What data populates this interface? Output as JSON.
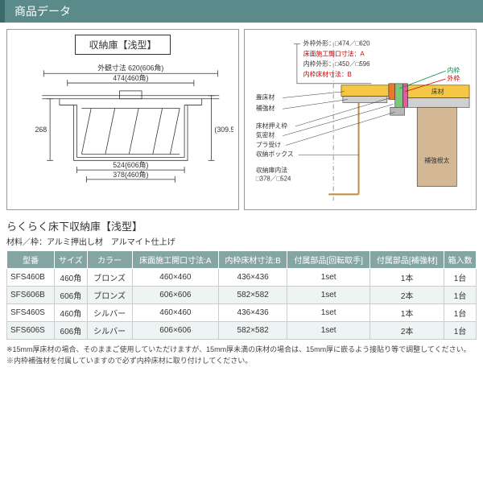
{
  "header": {
    "title": "商品データ"
  },
  "leftDiagram": {
    "title": "収納庫【浅型】",
    "dims": {
      "outerW": "外観寸法 620(606角)",
      "outerW2": "474(460角)",
      "h1": "268",
      "h2": "(309.5)",
      "innerW1": "524(606角)",
      "innerW2": "378(460角)"
    }
  },
  "rightDiagram": {
    "labels": {
      "l1": "外枠外形：□474／□620",
      "l2": "床面施工開口寸法：A",
      "l3": "内枠外形：□450／□596",
      "l4": "内枠床材寸法：B",
      "inner": "内枠",
      "outer": "外枠",
      "p1": "畳床材",
      "p2": "補強材",
      "p3": "床材押え枠",
      "p4": "気密材",
      "p5": "プラ受け",
      "p6": "収納ボックス",
      "p7": "収納庫内法",
      "p8": "□378／□524",
      "floor": "床材",
      "beam": "補強根太"
    },
    "colors": {
      "floor": "#f5c744",
      "beam": "#d4b896",
      "redLine": "#c00000",
      "greenLine": "#0a8a4a",
      "gray": "#b8b8b8"
    }
  },
  "product": {
    "title": "らくらく床下収納庫【浅型】",
    "sub": "材料／枠：アルミ押出し材　アルマイト仕上げ"
  },
  "table": {
    "headers": [
      "型番",
      "サイズ",
      "カラー",
      "床面施工開口寸法:A",
      "内枠床材寸法:B",
      "付属部品[回転取手]",
      "付属部品[補強材]",
      "箱入数"
    ],
    "rows": [
      [
        "SFS460B",
        "460角",
        "ブロンズ",
        "460×460",
        "436×436",
        "1set",
        "1本",
        "1台"
      ],
      [
        "SFS606B",
        "606角",
        "ブロンズ",
        "606×606",
        "582×582",
        "1set",
        "2本",
        "1台"
      ],
      [
        "SFS460S",
        "460角",
        "シルバー",
        "460×460",
        "436×436",
        "1set",
        "1本",
        "1台"
      ],
      [
        "SFS606S",
        "606角",
        "シルバー",
        "606×606",
        "582×582",
        "1set",
        "2本",
        "1台"
      ]
    ]
  },
  "notes": {
    "n1": "※15mm厚床材の場合、そのままご使用していただけますが、15mm厚未満の床材の場合は、15mm厚に嵌るよう接貼り等で調整してください。",
    "n2": "※内枠補強材を付属していますので必ず内枠床材に取り付けしてください。"
  }
}
